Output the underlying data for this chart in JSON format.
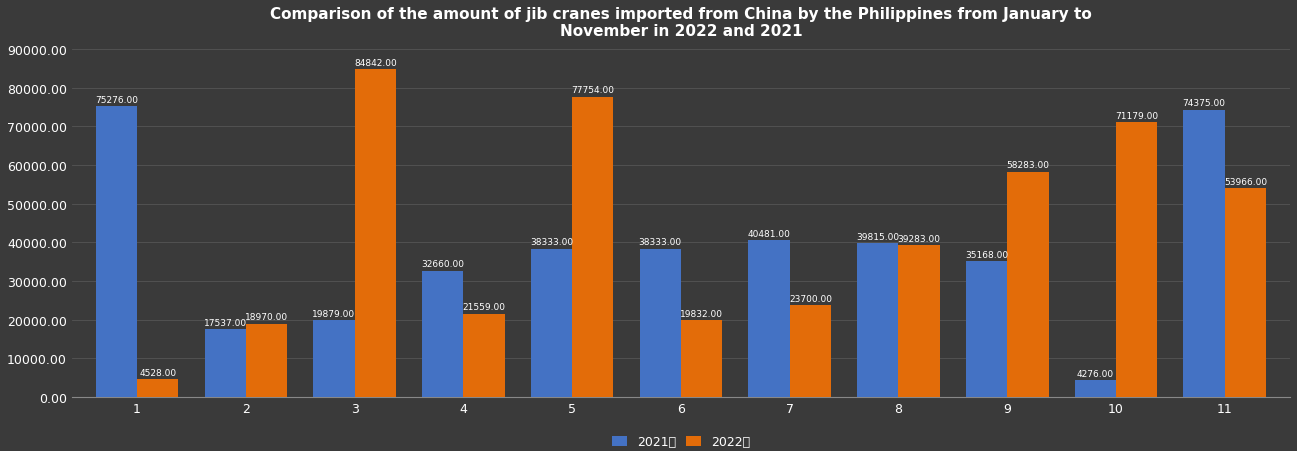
{
  "title": "Comparison of the amount of jib cranes imported from China by the Philippines from January to\nNovember in 2022 and 2021",
  "months": [
    1,
    2,
    3,
    4,
    5,
    6,
    7,
    8,
    9,
    10,
    11
  ],
  "values_2021": [
    75276.0,
    17537.0,
    19879.0,
    32660.0,
    38333.0,
    38333.0,
    40481.0,
    39815.0,
    35168.0,
    4276.0,
    74375.0
  ],
  "values_2022": [
    4528.0,
    18970.0,
    84842.0,
    21559.0,
    77754.0,
    19832.0,
    23700.0,
    39283.0,
    58283.0,
    71179.0,
    53966.0
  ],
  "color_2021": "#4472C4",
  "color_2022": "#E36C09",
  "background_color": "#3a3a3a",
  "axes_bg_color": "#3a3a3a",
  "grid_color": "#555555",
  "text_color": "#ffffff",
  "bar_text_color": "#ffffff",
  "ylim": [
    0,
    90000
  ],
  "yticks": [
    0,
    10000,
    20000,
    30000,
    40000,
    50000,
    60000,
    70000,
    80000,
    90000
  ],
  "legend_2021": "2021年",
  "legend_2022": "2022年",
  "bar_width": 0.38,
  "title_fontsize": 11,
  "label_fontsize": 6.5,
  "tick_fontsize": 9
}
